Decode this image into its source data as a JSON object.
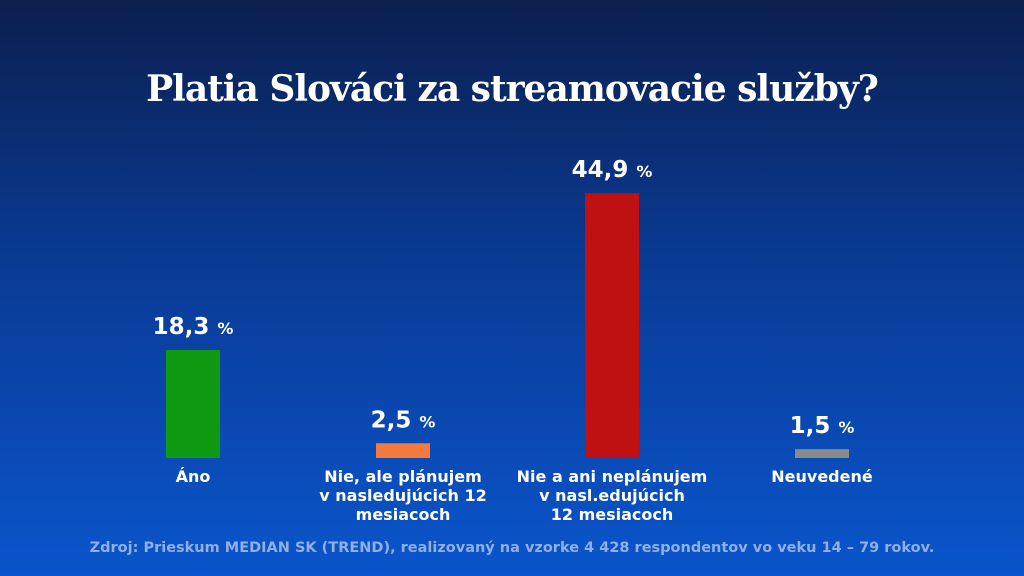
{
  "chart_data": {
    "type": "bar",
    "title": "Platia Slováci za streamovacie služby?",
    "categories": [
      "Áno",
      "Nie, ale plánujem\nv nasledujúcich 12\nmesiacoch",
      "Nie a ani neplánujem\nv nasl.edujúcich\n12 mesiacoch",
      "Neuvedené"
    ],
    "values": [
      18.3,
      2.5,
      44.9,
      1.5
    ],
    "value_labels": [
      "18,3",
      "2,5",
      "44,9",
      "1,5"
    ],
    "unit": "%",
    "colors": [
      "#0f9a14",
      "#f57a3d",
      "#bf1111",
      "#8a8a8a"
    ],
    "ylim": [
      0,
      50
    ],
    "grid": false
  },
  "source": "Zdroj: Prieskum MEDIAN SK (TREND), realizovaný na vzorke 4 428 respondentov vo veku 14 – 79 rokov."
}
